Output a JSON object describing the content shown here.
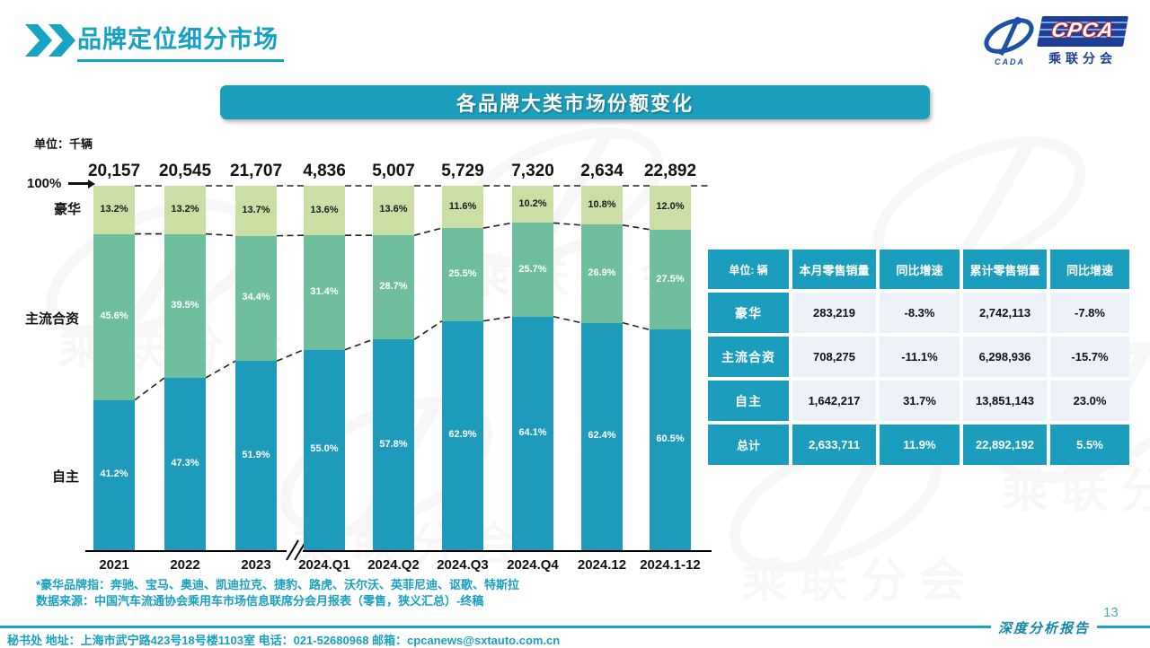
{
  "header": {
    "title": "品牌定位细分市场",
    "logo": {
      "cpca": "CPCA",
      "cn_name": "乘联分会",
      "sub": "CADA"
    }
  },
  "banner": {
    "title": "各品牌大类市场份额变化"
  },
  "chart": {
    "unit_label": "单位：千辆",
    "y_axis_top": "100%",
    "side_labels": {
      "luxury": "豪华",
      "jv": "主流合资",
      "domestic": "自主"
    }
  },
  "chart_data": {
    "type": "bar",
    "stacked": true,
    "title": "各品牌大类市场份额变化",
    "unit": "千辆",
    "ylim": [
      0,
      100
    ],
    "categories": [
      "2021",
      "2022",
      "2023",
      "2024.Q1",
      "2024.Q2",
      "2024.Q3",
      "2024.Q4",
      "2024.12",
      "2024.1-12"
    ],
    "totals": [
      "20,157",
      "20,545",
      "21,707",
      "4,836",
      "5,007",
      "5,729",
      "7,320",
      "2,634",
      "22,892"
    ],
    "series": [
      {
        "name": "自主",
        "color": "#1E9BBA",
        "label_color": "#ffffff",
        "values": [
          41.2,
          47.3,
          51.9,
          55.0,
          57.8,
          62.9,
          64.1,
          62.4,
          60.5
        ]
      },
      {
        "name": "主流合资",
        "color": "#6FBF9E",
        "label_color": "#ffffff",
        "values": [
          45.6,
          39.5,
          34.4,
          31.4,
          28.7,
          25.5,
          25.7,
          26.9,
          27.5
        ]
      },
      {
        "name": "豪华",
        "color": "#CBDFA4",
        "label_color": "#1a1a1a",
        "values": [
          13.2,
          13.2,
          13.7,
          13.6,
          13.6,
          11.6,
          10.2,
          10.8,
          12.0
        ]
      }
    ]
  },
  "table": {
    "headers": [
      "单位: 辆",
      "本月零售销量",
      "同比增速",
      "累计零售销量",
      "同比增速"
    ],
    "rows": [
      {
        "label": "豪华",
        "cells": [
          "283,219",
          "-8.3%",
          "2,742,113",
          "-7.8%"
        ],
        "total": false
      },
      {
        "label": "主流合资",
        "cells": [
          "708,275",
          "-11.1%",
          "6,298,936",
          "-15.7%"
        ],
        "total": false
      },
      {
        "label": "自主",
        "cells": [
          "1,642,217",
          "31.7%",
          "13,851,143",
          "23.0%"
        ],
        "total": false
      },
      {
        "label": "总计",
        "cells": [
          "2,633,711",
          "11.9%",
          "22,892,192",
          "5.5%"
        ],
        "total": true
      }
    ]
  },
  "footnotes": {
    "line1": "*豪华品牌指：奔驰、宝马、奥迪、凯迪拉克、捷豹、路虎、沃尔沃、英菲尼迪、讴歌、特斯拉",
    "line2": "数据来源：中国汽车流通协会乘用车市场信息联席分会月报表（零售，狭义汇总）-终稿"
  },
  "footer": {
    "text": "秘书处  地址：上海市武宁路423号18号楼1103室 电话：021-52680968   邮箱：cpcanews@sxtauto.com.cn",
    "report_label": "深度分析报告",
    "page_number": "13"
  },
  "colors": {
    "accent": "#189EBD",
    "bar_domestic": "#1E9BBA",
    "bar_jv": "#6FBF9E",
    "bar_luxury": "#CBDFA4",
    "table_header": "#1B9EBE",
    "table_cell_bg": "#EDF2F9",
    "logo_blue": "#1C3E95",
    "logo_red": "#C9252C"
  }
}
